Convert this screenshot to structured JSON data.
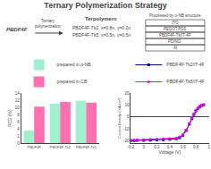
{
  "chart_data": [
    {
      "type": "bar",
      "title": "Ternary Polymerization Strategy",
      "categories": [
        "PBDF4F",
        "PBDF4F-Tk2",
        "PBDF4F-Tk5"
      ],
      "series": [
        {
          "name": "prepared in o-NB",
          "color": "#a0f0d0",
          "values": [
            3.5,
            11.0,
            11.8
          ]
        },
        {
          "name": "prepared in CB",
          "color": "#ff70b0",
          "values": [
            10.2,
            11.5,
            11.3
          ]
        }
      ],
      "ylabel": "PCE (%)",
      "ylim": [
        0,
        14
      ],
      "yticks": [
        0,
        2,
        4,
        6,
        8,
        10,
        12,
        14
      ],
      "grid": false,
      "legend": "top",
      "annotations": [
        "PBDF4F",
        "Ternary\npolymerization",
        "Terpolymers",
        "PBDF4F-Tk2, x=0.8n, y=0.2n",
        "PBDF4F-Tk5, x=0.5n, y=0.5n"
      ]
    },
    {
      "type": "line",
      "x": [
        -0.2,
        -0.15,
        -0.1,
        0.0,
        0.1,
        0.2,
        0.3,
        0.4,
        0.5,
        0.55,
        0.6,
        0.65,
        0.7,
        0.74,
        0.77,
        0.8,
        0.83,
        0.86,
        0.89,
        0.92
      ],
      "series": [
        {
          "name": "PBDF4F-Tk2/IT-4F",
          "color": "#000080",
          "marker": "square",
          "values": [
            -20.0,
            -19.9,
            -19.8,
            -19.7,
            -19.5,
            -19.3,
            -19.1,
            -18.9,
            -18.5,
            -17.5,
            -15.5,
            -11.5,
            -6.0,
            -1.5,
            2.0,
            5.0,
            7.0,
            8.5,
            9.5,
            10.0
          ]
        },
        {
          "name": "PBDF4F-Tk5/IT-4F",
          "color": "#ee00ee",
          "marker": "circle",
          "values": [
            -19.5,
            -19.4,
            -19.3,
            -19.1,
            -18.9,
            -18.7,
            -18.5,
            -18.2,
            -17.8,
            -16.8,
            -14.8,
            -11.0,
            -5.5,
            -1.0,
            2.5,
            5.5,
            7.5,
            9.0,
            9.8,
            10.2
          ]
        }
      ],
      "xlabel": "Voltage (V)",
      "ylabel": "Current Density (mA/cm²)",
      "xlim": [
        -0.2,
        1
      ],
      "xticks": [
        -0.2,
        0,
        0.2,
        0.4,
        0.6,
        0.8,
        1
      ],
      "ylim": [
        -22,
        20
      ],
      "yticks": [
        -20,
        -10,
        0,
        10,
        20
      ],
      "grid": false,
      "legend": "top",
      "annotations": [
        "Processed by o-NB structure",
        "Al",
        "PDINO",
        "PBDF4F-Tk/IT-4F",
        "PEDOT:PSS",
        "ITO"
      ]
    }
  ]
}
